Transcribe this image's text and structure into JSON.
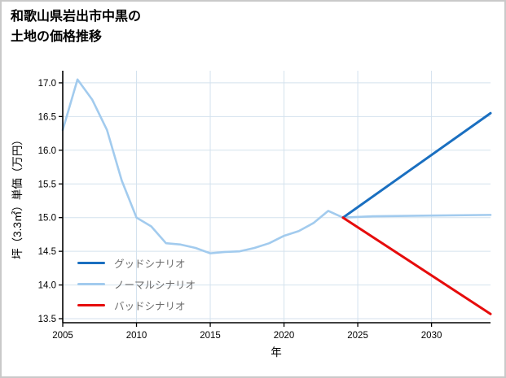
{
  "header": {
    "title_line1": "和歌山県岩出市中黒の",
    "title_line2": "土地の価格推移"
  },
  "chart_data": {
    "type": "line",
    "title": "和歌山県岩出市中黒の土地の価格推移",
    "xlabel": "年",
    "ylabel": "坪（3.3㎡）単価（万円）",
    "xlim": [
      2005,
      2034
    ],
    "ylim": [
      13.44,
      17.18
    ],
    "xticks": [
      2005,
      2010,
      2015,
      2020,
      2025,
      2030
    ],
    "yticks": [
      13.5,
      14.0,
      14.5,
      15.0,
      15.5,
      16.0,
      16.5,
      17.0
    ],
    "grid": true,
    "grid_color": "#d4e2ee",
    "axis_color": "#000000",
    "legend_position": "lower-left",
    "series": [
      {
        "name": "グッドシナリオ",
        "color": "#1a6fc0",
        "width": 3,
        "x": [
          2024,
          2034
        ],
        "y": [
          15.0,
          16.55
        ]
      },
      {
        "name": "ノーマルシナリオ",
        "color": "#a2cbee",
        "width": 2.6,
        "x": [
          2005,
          2006,
          2007,
          2008,
          2009,
          2010,
          2011,
          2012,
          2013,
          2014,
          2015,
          2016,
          2017,
          2018,
          2019,
          2020,
          2021,
          2022,
          2023,
          2024,
          2026,
          2030,
          2034
        ],
        "y": [
          16.3,
          17.05,
          16.75,
          16.3,
          15.55,
          15.0,
          14.87,
          14.62,
          14.6,
          14.55,
          14.47,
          14.49,
          14.5,
          14.55,
          14.62,
          14.73,
          14.8,
          14.92,
          15.1,
          15.0,
          15.02,
          15.03,
          15.04
        ]
      },
      {
        "name": "バッドシナリオ",
        "color": "#e60c0c",
        "width": 3,
        "x": [
          2024,
          2034
        ],
        "y": [
          15.0,
          13.57
        ]
      }
    ]
  }
}
